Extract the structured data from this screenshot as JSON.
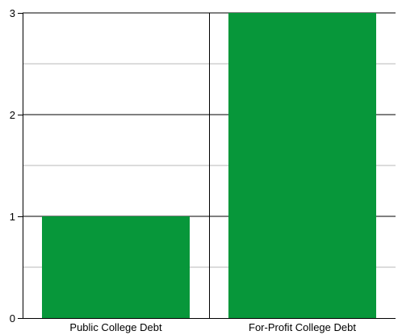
{
  "chart_data": {
    "type": "bar",
    "categories": [
      "Public College Debt",
      "For-Profit College Debt"
    ],
    "values": [
      1,
      3
    ],
    "title": "",
    "xlabel": "",
    "ylabel": "",
    "ylim": [
      0,
      3
    ],
    "y_ticks": [
      "0",
      "1",
      "2",
      "3"
    ],
    "grid": true,
    "bar_color": "#07973a",
    "major_grid_color": "#000000",
    "minor_grid_color": "#b9b9b9"
  }
}
